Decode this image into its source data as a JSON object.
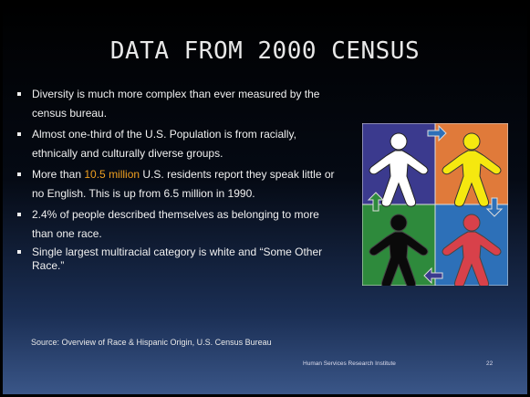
{
  "title": "DATA FROM 2000 CENSUS",
  "bullets": [
    [
      "Diversity is much more complex than ever measured by the census bureau."
    ],
    [
      "Almost one-third of the U.S. Population is from racially, ethnically and culturally diverse groups."
    ],
    [
      "More than ",
      "10.5 million",
      " U.S. residents report they speak little or no English.  This is up from 6.5 million in 1990."
    ],
    [
      "2.4% of people described themselves as belonging to more than one race."
    ],
    [
      "Single largest multiracial category is white and “Some Other Race.”"
    ]
  ],
  "source": "Source: Overview of Race & Hispanic Origin, U.S. Census Bureau",
  "footer": "Human Services Research Institute",
  "page_number": "22"
}
